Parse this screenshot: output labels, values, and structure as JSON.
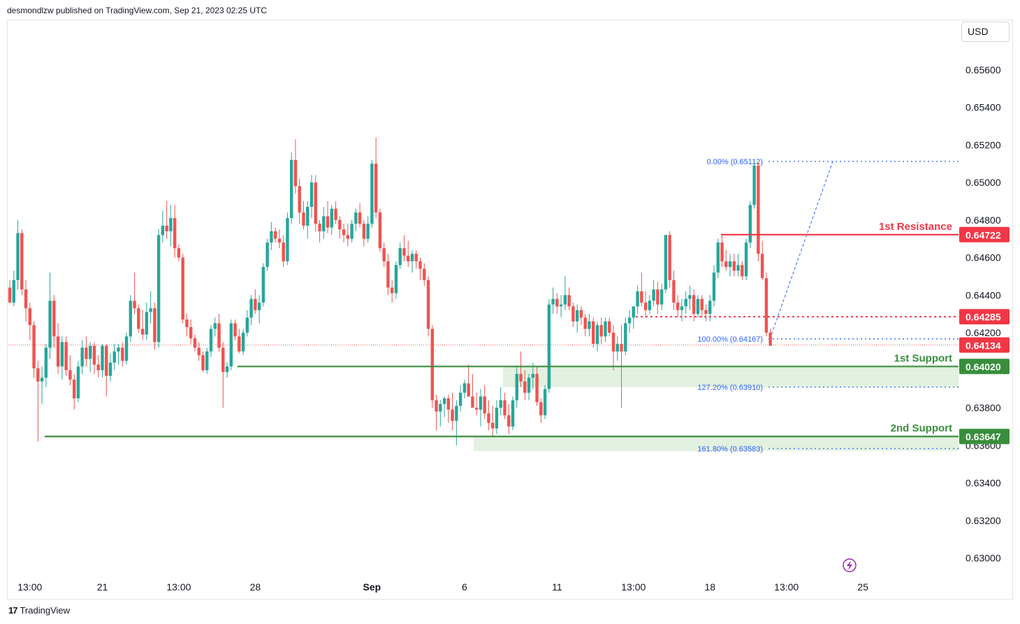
{
  "header": {
    "publisher_text": "desmondlzw published on TradingView.com, Sep 21, 2023 02:25 UTC",
    "currency": "USD"
  },
  "footer": {
    "brand": "TradingView"
  },
  "colors": {
    "up": "#26a69a",
    "down": "#ef5350",
    "resistance": "#f23645",
    "support": "#388e3c",
    "support_zone": "#dff0dd",
    "fib": "#2962ff",
    "fib_text": "#2962ff"
  },
  "chart_data": {
    "type": "candlestick",
    "title": "",
    "y_axis": {
      "ylim": [
        0.6292,
        0.6586
      ],
      "ticks": [
        "0.65600",
        "0.65400",
        "0.65200",
        "0.65000",
        "0.64800",
        "0.64600",
        "0.64400",
        "0.64200",
        "0.63800",
        "0.63600",
        "0.63400",
        "0.63200",
        "0.63000"
      ],
      "tick_values": [
        0.656,
        0.654,
        0.652,
        0.65,
        0.648,
        0.646,
        0.644,
        0.642,
        0.638,
        0.636,
        0.634,
        0.632,
        0.63
      ]
    },
    "x_axis": {
      "ticks": [
        {
          "label": "13:00",
          "index": 5
        },
        {
          "label": "21",
          "index": 23
        },
        {
          "label": "13:00",
          "index": 42
        },
        {
          "label": "28",
          "index": 61
        },
        {
          "label": "Sep",
          "index": 90,
          "bold": true
        },
        {
          "label": "6",
          "index": 113
        },
        {
          "label": "11",
          "index": 136
        },
        {
          "label": "13:00",
          "index": 155
        },
        {
          "label": "18",
          "index": 174
        },
        {
          "label": "13:00",
          "index": 193
        },
        {
          "label": "25",
          "index": 212
        }
      ]
    },
    "candles": [
      [
        0.6444,
        0.6448,
        0.6436,
        0.6436
      ],
      [
        0.6436,
        0.6453,
        0.6434,
        0.6448
      ],
      [
        0.6448,
        0.648,
        0.6443,
        0.6473
      ],
      [
        0.6473,
        0.6475,
        0.644,
        0.6443
      ],
      [
        0.6443,
        0.6448,
        0.6426,
        0.6433
      ],
      [
        0.6433,
        0.6436,
        0.6416,
        0.6424
      ],
      [
        0.6424,
        0.6426,
        0.6396,
        0.6401
      ],
      [
        0.6401,
        0.6405,
        0.6362,
        0.6394
      ],
      [
        0.6394,
        0.6402,
        0.6382,
        0.6396
      ],
      [
        0.6396,
        0.6414,
        0.6391,
        0.6412
      ],
      [
        0.6412,
        0.6452,
        0.6406,
        0.6437
      ],
      [
        0.6437,
        0.644,
        0.6412,
        0.6418
      ],
      [
        0.6418,
        0.6425,
        0.6398,
        0.6402
      ],
      [
        0.6402,
        0.6418,
        0.6395,
        0.6415
      ],
      [
        0.6415,
        0.6418,
        0.6397,
        0.64
      ],
      [
        0.64,
        0.6408,
        0.6392,
        0.6395
      ],
      [
        0.6395,
        0.6398,
        0.6379,
        0.6385
      ],
      [
        0.6385,
        0.6405,
        0.6383,
        0.6402
      ],
      [
        0.6402,
        0.6416,
        0.6398,
        0.6412
      ],
      [
        0.6412,
        0.6418,
        0.6402,
        0.6406
      ],
      [
        0.6406,
        0.6415,
        0.6399,
        0.6413
      ],
      [
        0.6413,
        0.6415,
        0.6398,
        0.6403
      ],
      [
        0.6403,
        0.6408,
        0.6396,
        0.64
      ],
      [
        0.64,
        0.6414,
        0.6396,
        0.6413
      ],
      [
        0.6413,
        0.6414,
        0.6386,
        0.6397
      ],
      [
        0.6397,
        0.6409,
        0.6394,
        0.6404
      ],
      [
        0.6404,
        0.6414,
        0.64,
        0.641
      ],
      [
        0.641,
        0.6414,
        0.6403,
        0.6412
      ],
      [
        0.6412,
        0.6415,
        0.6402,
        0.6405
      ],
      [
        0.6405,
        0.642,
        0.6403,
        0.6418
      ],
      [
        0.6418,
        0.644,
        0.6415,
        0.6437
      ],
      [
        0.6437,
        0.6452,
        0.643,
        0.6433
      ],
      [
        0.6433,
        0.6435,
        0.642,
        0.6422
      ],
      [
        0.6422,
        0.6432,
        0.6416,
        0.6419
      ],
      [
        0.6419,
        0.6436,
        0.6416,
        0.6431
      ],
      [
        0.6431,
        0.6442,
        0.6425,
        0.6433
      ],
      [
        0.6433,
        0.6436,
        0.6411,
        0.6415
      ],
      [
        0.6415,
        0.6475,
        0.6412,
        0.6472
      ],
      [
        0.6472,
        0.6485,
        0.6468,
        0.6477
      ],
      [
        0.6477,
        0.649,
        0.647,
        0.6474
      ],
      [
        0.6474,
        0.6488,
        0.6466,
        0.6481
      ],
      [
        0.6481,
        0.6488,
        0.646,
        0.6465
      ],
      [
        0.6465,
        0.6467,
        0.6458,
        0.646
      ],
      [
        0.646,
        0.6462,
        0.6425,
        0.6427
      ],
      [
        0.6427,
        0.643,
        0.6418,
        0.6423
      ],
      [
        0.6423,
        0.6427,
        0.6414,
        0.6417
      ],
      [
        0.6417,
        0.6419,
        0.641,
        0.6412
      ],
      [
        0.6412,
        0.6415,
        0.6405,
        0.6408
      ],
      [
        0.6408,
        0.641,
        0.6399,
        0.64
      ],
      [
        0.64,
        0.6412,
        0.6398,
        0.641
      ],
      [
        0.641,
        0.6424,
        0.6407,
        0.6422
      ],
      [
        0.6422,
        0.6428,
        0.6418,
        0.6425
      ],
      [
        0.6425,
        0.643,
        0.641,
        0.6412
      ],
      [
        0.6412,
        0.6415,
        0.638,
        0.6399
      ],
      [
        0.6399,
        0.6404,
        0.6396,
        0.6402
      ],
      [
        0.6402,
        0.6427,
        0.64,
        0.6425
      ],
      [
        0.6425,
        0.6427,
        0.6416,
        0.6418
      ],
      [
        0.6418,
        0.6422,
        0.6409,
        0.641
      ],
      [
        0.641,
        0.6422,
        0.6408,
        0.642
      ],
      [
        0.642,
        0.6432,
        0.6418,
        0.6428
      ],
      [
        0.6428,
        0.644,
        0.6424,
        0.6438
      ],
      [
        0.6438,
        0.6443,
        0.643,
        0.6432
      ],
      [
        0.6432,
        0.644,
        0.6425,
        0.6436
      ],
      [
        0.6436,
        0.6457,
        0.6434,
        0.6455
      ],
      [
        0.6455,
        0.647,
        0.6453,
        0.6468
      ],
      [
        0.6468,
        0.6479,
        0.6464,
        0.6474
      ],
      [
        0.6474,
        0.6476,
        0.6468,
        0.647
      ],
      [
        0.647,
        0.6475,
        0.6465,
        0.6468
      ],
      [
        0.6468,
        0.6472,
        0.6455,
        0.6458
      ],
      [
        0.6458,
        0.6484,
        0.6456,
        0.6481
      ],
      [
        0.6481,
        0.6516,
        0.6478,
        0.6512
      ],
      [
        0.6512,
        0.6523,
        0.6494,
        0.6498
      ],
      [
        0.6498,
        0.6502,
        0.6478,
        0.6484
      ],
      [
        0.6484,
        0.649,
        0.6475,
        0.6477
      ],
      [
        0.6477,
        0.649,
        0.647,
        0.6487
      ],
      [
        0.6487,
        0.6504,
        0.6481,
        0.65
      ],
      [
        0.65,
        0.6504,
        0.6474,
        0.6478
      ],
      [
        0.6478,
        0.648,
        0.6468,
        0.6474
      ],
      [
        0.6474,
        0.6487,
        0.647,
        0.6482
      ],
      [
        0.6482,
        0.649,
        0.6473,
        0.6476
      ],
      [
        0.6476,
        0.6488,
        0.6472,
        0.6486
      ],
      [
        0.6486,
        0.649,
        0.6478,
        0.648
      ],
      [
        0.648,
        0.6482,
        0.647,
        0.6475
      ],
      [
        0.6475,
        0.6478,
        0.6468,
        0.6472
      ],
      [
        0.6472,
        0.6478,
        0.6466,
        0.647
      ],
      [
        0.647,
        0.648,
        0.6468,
        0.6478
      ],
      [
        0.6478,
        0.6486,
        0.6474,
        0.6484
      ],
      [
        0.6484,
        0.6489,
        0.6476,
        0.6478
      ],
      [
        0.6478,
        0.648,
        0.6466,
        0.647
      ],
      [
        0.647,
        0.6482,
        0.6468,
        0.6478
      ],
      [
        0.6478,
        0.6512,
        0.6476,
        0.651
      ],
      [
        0.651,
        0.6524,
        0.6481,
        0.6484
      ],
      [
        0.6484,
        0.6486,
        0.6463,
        0.6465
      ],
      [
        0.6465,
        0.6468,
        0.6455,
        0.6458
      ],
      [
        0.6458,
        0.6462,
        0.644,
        0.6444
      ],
      [
        0.6444,
        0.6448,
        0.6436,
        0.6441
      ],
      [
        0.6441,
        0.6458,
        0.6438,
        0.6456
      ],
      [
        0.6456,
        0.6468,
        0.6454,
        0.6465
      ],
      [
        0.6465,
        0.6472,
        0.6458,
        0.6461
      ],
      [
        0.6461,
        0.6469,
        0.6455,
        0.6458
      ],
      [
        0.6458,
        0.6464,
        0.6452,
        0.6462
      ],
      [
        0.6462,
        0.6464,
        0.6454,
        0.6458
      ],
      [
        0.6458,
        0.646,
        0.6448,
        0.6454
      ],
      [
        0.6454,
        0.6457,
        0.6445,
        0.6448
      ],
      [
        0.6448,
        0.645,
        0.6418,
        0.6422
      ],
      [
        0.6422,
        0.6424,
        0.638,
        0.6384
      ],
      [
        0.6384,
        0.6387,
        0.6368,
        0.6378
      ],
      [
        0.6378,
        0.6384,
        0.637,
        0.6382
      ],
      [
        0.6382,
        0.6386,
        0.6375,
        0.6385
      ],
      [
        0.6385,
        0.6387,
        0.6372,
        0.6379
      ],
      [
        0.6379,
        0.6388,
        0.6368,
        0.6373
      ],
      [
        0.6373,
        0.6384,
        0.636,
        0.6381
      ],
      [
        0.6381,
        0.6392,
        0.6378,
        0.6388
      ],
      [
        0.6388,
        0.6395,
        0.6385,
        0.6393
      ],
      [
        0.6393,
        0.6403,
        0.6388,
        0.6386
      ],
      [
        0.6386,
        0.6398,
        0.6382,
        0.638
      ],
      [
        0.638,
        0.6388,
        0.6376,
        0.6379
      ],
      [
        0.6379,
        0.639,
        0.637,
        0.6386
      ],
      [
        0.6386,
        0.6392,
        0.6374,
        0.6377
      ],
      [
        0.6377,
        0.6384,
        0.6368,
        0.6372
      ],
      [
        0.6372,
        0.6381,
        0.6365,
        0.6369
      ],
      [
        0.6369,
        0.6384,
        0.6366,
        0.638
      ],
      [
        0.638,
        0.6391,
        0.6376,
        0.6384
      ],
      [
        0.6384,
        0.6388,
        0.6374,
        0.6376
      ],
      [
        0.6376,
        0.6382,
        0.6366,
        0.637
      ],
      [
        0.637,
        0.6386,
        0.6368,
        0.6384
      ],
      [
        0.6384,
        0.6402,
        0.638,
        0.6398
      ],
      [
        0.6398,
        0.641,
        0.6391,
        0.6394
      ],
      [
        0.6394,
        0.64,
        0.6384,
        0.6388
      ],
      [
        0.6388,
        0.6398,
        0.6384,
        0.6396
      ],
      [
        0.6396,
        0.6404,
        0.639,
        0.6398
      ],
      [
        0.6398,
        0.6402,
        0.6381,
        0.6383
      ],
      [
        0.6383,
        0.6385,
        0.6372,
        0.6376
      ],
      [
        0.6376,
        0.6392,
        0.6374,
        0.639
      ],
      [
        0.639,
        0.6438,
        0.6388,
        0.6435
      ],
      [
        0.6435,
        0.6444,
        0.643,
        0.6438
      ],
      [
        0.6438,
        0.6441,
        0.643,
        0.6434
      ],
      [
        0.6434,
        0.644,
        0.6428,
        0.6435
      ],
      [
        0.6435,
        0.645,
        0.6432,
        0.644
      ],
      [
        0.644,
        0.6444,
        0.6432,
        0.6434
      ],
      [
        0.6434,
        0.6436,
        0.6423,
        0.6426
      ],
      [
        0.6426,
        0.6435,
        0.642,
        0.6432
      ],
      [
        0.6432,
        0.6434,
        0.6424,
        0.6428
      ],
      [
        0.6428,
        0.643,
        0.6418,
        0.6422
      ],
      [
        0.6422,
        0.643,
        0.6418,
        0.6426
      ],
      [
        0.6426,
        0.6428,
        0.6412,
        0.6414
      ],
      [
        0.6414,
        0.6426,
        0.641,
        0.6424
      ],
      [
        0.6424,
        0.6428,
        0.6414,
        0.6418
      ],
      [
        0.6418,
        0.6428,
        0.6415,
        0.6426
      ],
      [
        0.6426,
        0.6428,
        0.6418,
        0.642
      ],
      [
        0.642,
        0.6424,
        0.64,
        0.641
      ],
      [
        0.641,
        0.6418,
        0.6405,
        0.6414
      ],
      [
        0.6414,
        0.6424,
        0.638,
        0.641
      ],
      [
        0.641,
        0.6428,
        0.6408,
        0.6425
      ],
      [
        0.6425,
        0.6432,
        0.642,
        0.6428
      ],
      [
        0.6428,
        0.6434,
        0.6422,
        0.6434
      ],
      [
        0.6434,
        0.6445,
        0.643,
        0.6442
      ],
      [
        0.6442,
        0.6452,
        0.6434,
        0.6436
      ],
      [
        0.6436,
        0.6442,
        0.6428,
        0.6432
      ],
      [
        0.6432,
        0.644,
        0.643,
        0.6437
      ],
      [
        0.6437,
        0.6448,
        0.6434,
        0.6443
      ],
      [
        0.6443,
        0.6447,
        0.643,
        0.6435
      ],
      [
        0.6435,
        0.6446,
        0.6432,
        0.6443
      ],
      [
        0.6443,
        0.6472,
        0.6441,
        0.6472
      ],
      [
        0.6472,
        0.6474,
        0.6444,
        0.6448
      ],
      [
        0.6448,
        0.6453,
        0.6432,
        0.6436
      ],
      [
        0.6436,
        0.644,
        0.6428,
        0.6432
      ],
      [
        0.6432,
        0.6438,
        0.6426,
        0.6434
      ],
      [
        0.6434,
        0.6442,
        0.643,
        0.6438
      ],
      [
        0.6438,
        0.6445,
        0.6432,
        0.644
      ],
      [
        0.644,
        0.6443,
        0.6426,
        0.643
      ],
      [
        0.643,
        0.644,
        0.6428,
        0.6438
      ],
      [
        0.6438,
        0.644,
        0.6428,
        0.6432
      ],
      [
        0.6432,
        0.6435,
        0.6426,
        0.643
      ],
      [
        0.643,
        0.644,
        0.6426,
        0.6437
      ],
      [
        0.6437,
        0.6456,
        0.6434,
        0.6452
      ],
      [
        0.6452,
        0.647,
        0.6449,
        0.6468
      ],
      [
        0.6468,
        0.6472,
        0.6455,
        0.6458
      ],
      [
        0.6458,
        0.6464,
        0.6453,
        0.6455
      ],
      [
        0.6455,
        0.6462,
        0.645,
        0.6458
      ],
      [
        0.6458,
        0.6462,
        0.645,
        0.6453
      ],
      [
        0.6453,
        0.6462,
        0.645,
        0.6456
      ],
      [
        0.6456,
        0.6458,
        0.6448,
        0.645
      ],
      [
        0.645,
        0.647,
        0.6448,
        0.6468
      ],
      [
        0.6468,
        0.649,
        0.6465,
        0.6488
      ],
      [
        0.6488,
        0.6511,
        0.6486,
        0.6509
      ],
      [
        0.6509,
        0.6511,
        0.6458,
        0.6462
      ],
      [
        0.6462,
        0.6469,
        0.6448,
        0.6449
      ],
      [
        0.6449,
        0.6452,
        0.6418,
        0.642
      ],
      [
        0.642,
        0.6422,
        0.6413,
        0.6413
      ]
    ],
    "levels": [
      {
        "name": "1st Resistance",
        "value": 0.64722,
        "label": "0.64722",
        "text": "1st Resistance",
        "kind": "resistance"
      },
      {
        "name": "dotted resistance",
        "value": 0.64285,
        "label": "0.64285",
        "text": "",
        "kind": "resistance-dotted"
      },
      {
        "name": "current price",
        "value": 0.64134,
        "label": "0.64134",
        "text": "",
        "kind": "price"
      },
      {
        "name": "1st Support",
        "value": 0.6402,
        "label": "0.64020",
        "text": "1st Support",
        "kind": "support"
      },
      {
        "name": "2nd Support",
        "value": 0.63647,
        "label": "0.63647",
        "text": "2nd Support",
        "kind": "support"
      }
    ],
    "fibonacci": [
      {
        "label": "0.00% (0.65112)",
        "value": 0.65112
      },
      {
        "label": "100.00% (0.64167)",
        "value": 0.64167
      },
      {
        "label": "127.20% (0.63910)",
        "value": 0.6391
      },
      {
        "label": "161.80% (0.63583)",
        "value": 0.63583
      }
    ],
    "support_zones": [
      {
        "from": 0.6402,
        "to": 0.6391
      },
      {
        "from": 0.63647,
        "to": 0.6357
      }
    ]
  }
}
